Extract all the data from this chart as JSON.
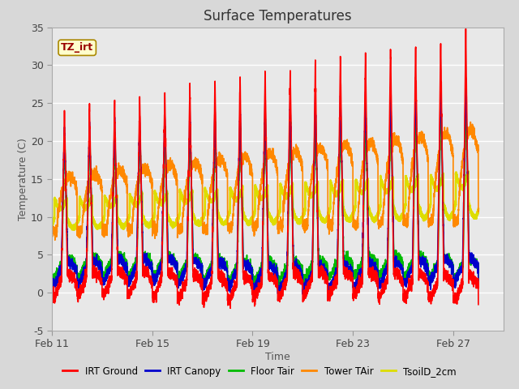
{
  "title": "Surface Temperatures",
  "xlabel": "Time",
  "ylabel": "Temperature (C)",
  "ylim": [
    -5,
    35
  ],
  "yticks": [
    -5,
    0,
    5,
    10,
    15,
    20,
    25,
    30,
    35
  ],
  "xtick_labels": [
    "Feb 11",
    "Feb 15",
    "Feb 19",
    "Feb 23",
    "Feb 27"
  ],
  "xtick_positions": [
    0,
    4,
    8,
    12,
    16
  ],
  "xlim": [
    0,
    18
  ],
  "fig_bg": "#d8d8d8",
  "ax_bg": "#e8e8e8",
  "legend_entries": [
    "IRT Ground",
    "IRT Canopy",
    "Floor Tair",
    "Tower TAir",
    "TsoilD_2cm"
  ],
  "line_colors": [
    "#ff0000",
    "#0000cc",
    "#00bb00",
    "#ff8800",
    "#dddd00"
  ],
  "line_widths": [
    1.2,
    1.2,
    1.2,
    1.2,
    2.0
  ],
  "annotation_text": "TZ_irt",
  "n_points": 5000,
  "n_days": 17
}
